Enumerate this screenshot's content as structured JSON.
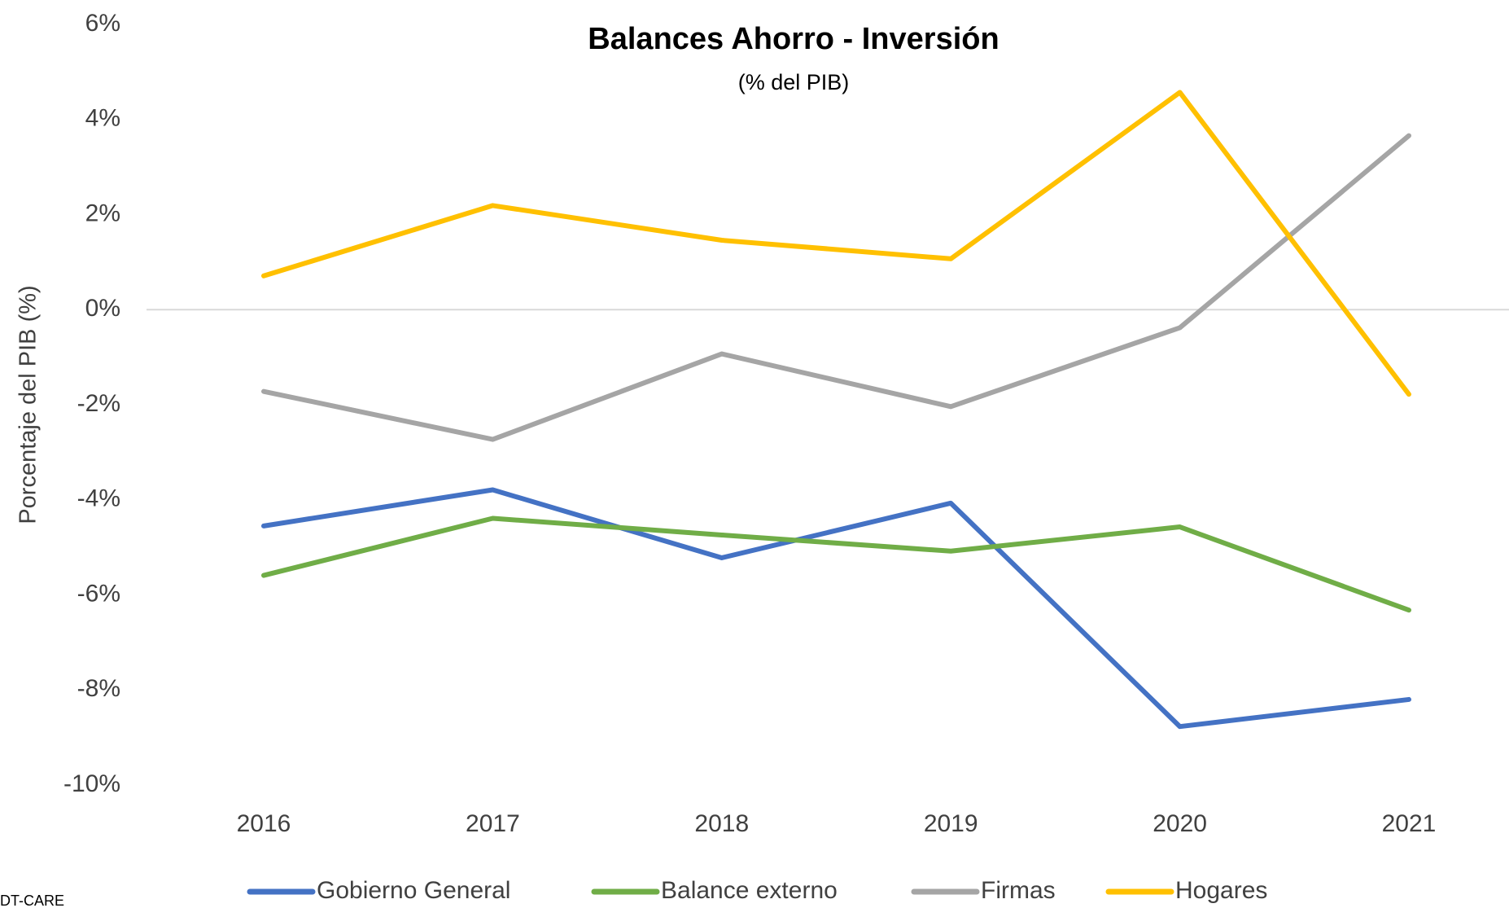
{
  "chart_data": {
    "type": "line",
    "title": "Balances Ahorro - Inversión",
    "subtitle": "(% del PIB)",
    "y_label": "Porcentaje del PIB (%)",
    "source": "DT-CARE",
    "categories": [
      "2016",
      "2017",
      "2018",
      "2019",
      "2020",
      "2021"
    ],
    "series": [
      {
        "name": "Gobierno General",
        "color": "#4472c4",
        "values": [
          -4.55,
          -3.79,
          -5.22,
          -4.07,
          -8.77,
          -8.2
        ]
      },
      {
        "name": "Balance externo",
        "color": "#70ad47",
        "values": [
          -5.59,
          -4.39,
          -4.74,
          -5.08,
          -4.57,
          -6.32
        ]
      },
      {
        "name": "Firmas",
        "color": "#a5a5a5",
        "values": [
          -1.72,
          -2.73,
          -0.93,
          -2.04,
          -0.38,
          3.66
        ]
      },
      {
        "name": "Hogares",
        "color": "#ffc000",
        "values": [
          0.71,
          2.19,
          1.46,
          1.07,
          4.57,
          -1.78
        ]
      }
    ],
    "ylim": [
      -10,
      6
    ],
    "yticks": [
      {
        "value": -10,
        "label": "-10%"
      },
      {
        "value": -8,
        "label": "-8%"
      },
      {
        "value": -6,
        "label": "-6%"
      },
      {
        "value": -4,
        "label": "-4%"
      },
      {
        "value": -2,
        "label": "-2%"
      },
      {
        "value": 0,
        "label": "0%"
      },
      {
        "value": 2,
        "label": "2%"
      },
      {
        "value": 4,
        "label": "4%"
      },
      {
        "value": 6,
        "label": "6%"
      }
    ],
    "zero_line": true,
    "legend": "bottom"
  }
}
